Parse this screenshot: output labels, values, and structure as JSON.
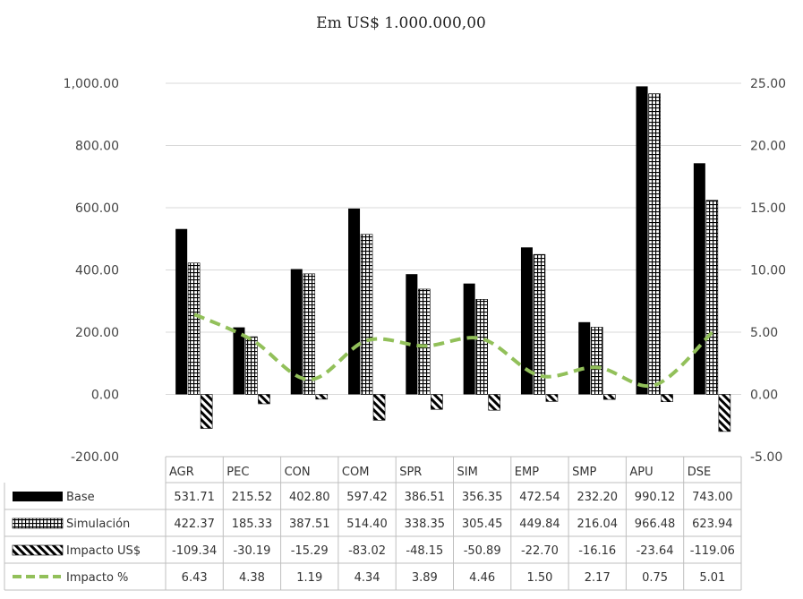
{
  "chart_data": {
    "type": "bar",
    "title": "Em US$ 1.000.000,00",
    "categories": [
      "AGR",
      "PEC",
      "CON",
      "COM",
      "SPR",
      "SIM",
      "EMP",
      "SMP",
      "APU",
      "DSE"
    ],
    "series": [
      {
        "name": "Base",
        "type": "bar",
        "axis": "left",
        "pattern": "solid",
        "values": [
          531.71,
          215.52,
          402.8,
          597.42,
          386.51,
          356.35,
          472.54,
          232.2,
          990.12,
          743.0
        ],
        "labels": [
          "531.71",
          "215.52",
          "402.80",
          "597.42",
          "386.51",
          "356.35",
          "472.54",
          "232.20",
          "990.12",
          "743.00"
        ]
      },
      {
        "name": "Simulación",
        "type": "bar",
        "axis": "left",
        "pattern": "grid",
        "values": [
          422.37,
          185.33,
          387.51,
          514.4,
          338.35,
          305.45,
          449.84,
          216.04,
          966.48,
          623.94
        ],
        "labels": [
          "422.37",
          "185.33",
          "387.51",
          "514.40",
          "338.35",
          "305.45",
          "449.84",
          "216.04",
          "966.48",
          "623.94"
        ]
      },
      {
        "name": "Impacto US$",
        "type": "bar",
        "axis": "left",
        "pattern": "diagonal",
        "values": [
          -109.34,
          -30.19,
          -15.29,
          -83.02,
          -48.15,
          -50.89,
          -22.7,
          -16.16,
          -23.64,
          -119.06
        ],
        "labels": [
          "-109.34",
          "-30.19",
          "-15.29",
          "-83.02",
          "-48.15",
          "-50.89",
          "-22.70",
          "-16.16",
          "-23.64",
          "-119.06"
        ]
      },
      {
        "name": "Impacto %",
        "type": "line",
        "axis": "right",
        "style": "dashed",
        "values": [
          6.43,
          4.38,
          1.19,
          4.34,
          3.89,
          4.46,
          1.5,
          2.17,
          0.75,
          5.01
        ],
        "labels": [
          "6.43",
          "4.38",
          "1.19",
          "4.34",
          "3.89",
          "4.46",
          "1.50",
          "2.17",
          "0.75",
          "5.01"
        ]
      }
    ],
    "ylim_left": [
      -200,
      1000
    ],
    "ylim_right": [
      -5,
      25
    ],
    "left_ticks": [
      "-200.00",
      "0.00",
      "200.00",
      "400.00",
      "600.00",
      "800.00",
      "1,000.00"
    ],
    "right_ticks": [
      "-5.00",
      "0.00",
      "5.00",
      "10.00",
      "15.00",
      "20.00",
      "25.00"
    ],
    "grid": true,
    "legend": "data-table"
  },
  "colors": {
    "bar": "#000000",
    "line": "#92c05a",
    "grid": "#d9d9d9"
  }
}
